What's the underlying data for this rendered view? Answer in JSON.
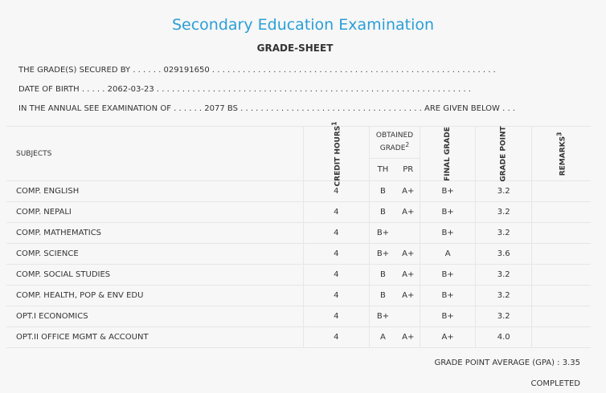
{
  "header": {
    "title": "Secondary Education Examination",
    "subtitle": "GRADE-SHEET"
  },
  "info": {
    "secured_by": "THE GRADE(S) SECURED BY . . . . . . 029191650 . . . . . . . . . . . . . . . . . . . . . . . . . . . . . . . . . . . . . . . . . . . . . . . . . . . . . . . .",
    "dob": "DATE OF BIRTH . . . . . 2062-03-23 . . . . . . . . . . . . . . . . . . . . . . . . . . . . . . . . . . . . . . . . . . . . . . . . . . . . . . . . . . . . . .",
    "exam": "IN THE ANNUAL SEE EXAMINATION OF . . . . . . 2077 BS . . . . . . . . . . . . . . . . . . . . . . . . . . . . . . . . . . . . ARE GIVEN BELOW . . ."
  },
  "table": {
    "headers": {
      "subjects": "SUBJECTS",
      "credit_hours": "CREDIT HOURS",
      "credit_sup": "1",
      "obtained_grade": "OBTAINED GRADE",
      "obtained_sup": "2",
      "th": "TH",
      "pr": "PR",
      "final_grade": "FINAL GRADE",
      "grade_point": "GRADE POINT",
      "remarks": "REMARKS",
      "remarks_sup": "3"
    },
    "rows": [
      {
        "subject": "COMP. ENGLISH",
        "credit": "4",
        "th": "B",
        "pr": "A+",
        "final": "B+",
        "gp": "3.2"
      },
      {
        "subject": "COMP. NEPALI",
        "credit": "4",
        "th": "B",
        "pr": "A+",
        "final": "B+",
        "gp": "3.2"
      },
      {
        "subject": "COMP. MATHEMATICS",
        "credit": "4",
        "th": "B+",
        "pr": "",
        "final": "B+",
        "gp": "3.2"
      },
      {
        "subject": "COMP. SCIENCE",
        "credit": "4",
        "th": "B+",
        "pr": "A+",
        "final": "A",
        "gp": "3.6"
      },
      {
        "subject": "COMP. SOCIAL STUDIES",
        "credit": "4",
        "th": "B",
        "pr": "A+",
        "final": "B+",
        "gp": "3.2"
      },
      {
        "subject": "COMP. HEALTH, POP & ENV EDU",
        "credit": "4",
        "th": "B",
        "pr": "A+",
        "final": "B+",
        "gp": "3.2"
      },
      {
        "subject": "OPT.I ECONOMICS",
        "credit": "4",
        "th": "B+",
        "pr": "",
        "final": "B+",
        "gp": "3.2"
      },
      {
        "subject": "OPT.II OFFICE MGMT & ACCOUNT",
        "credit": "4",
        "th": "A",
        "pr": "A+",
        "final": "A+",
        "gp": "4.0"
      }
    ]
  },
  "footer": {
    "gpa": "GRADE POINT AVERAGE (GPA) : 3.35",
    "status": "COMPLETED"
  }
}
